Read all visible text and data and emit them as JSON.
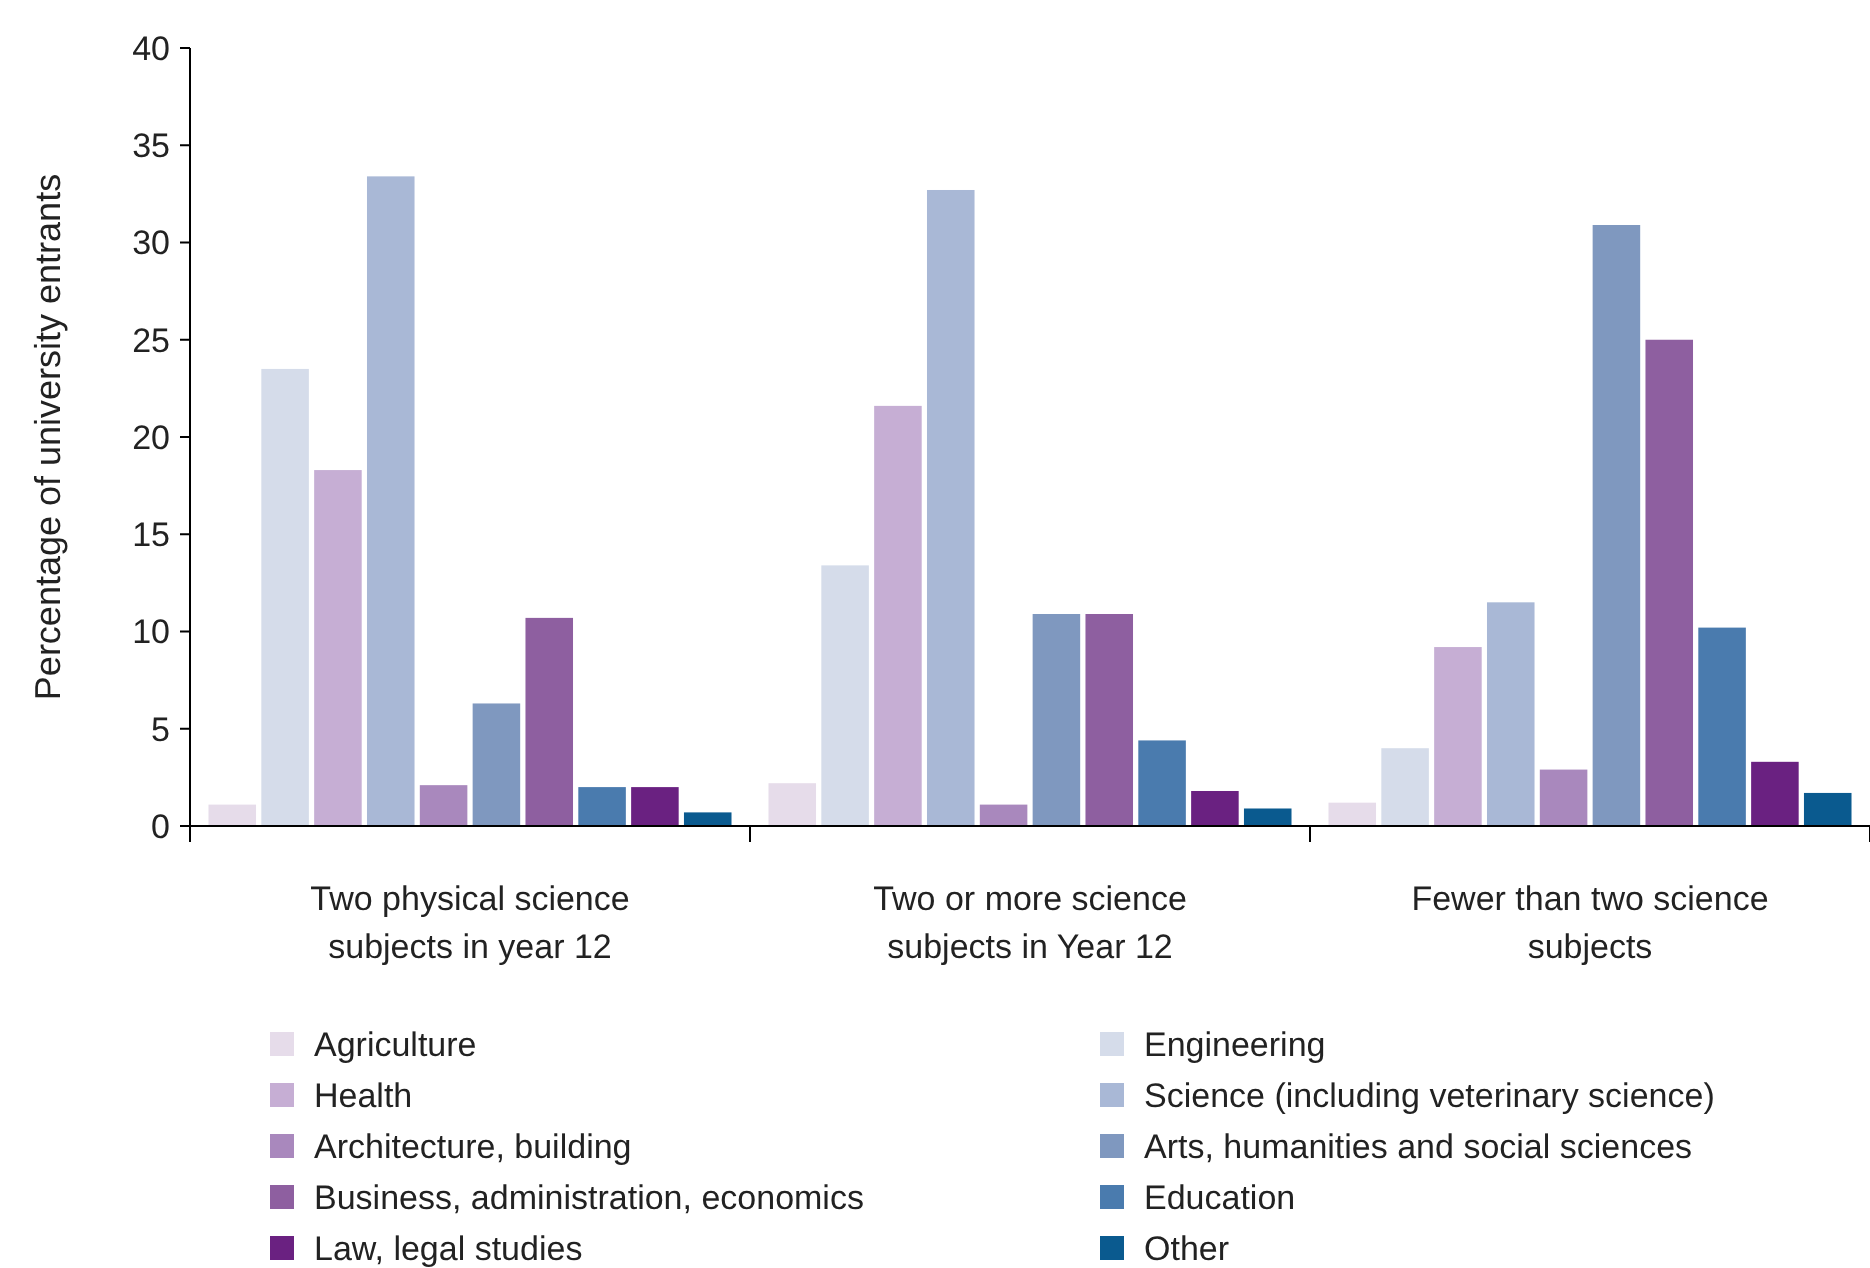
{
  "chart_data": {
    "type": "bar",
    "ylabel": "Percentage of university entrants",
    "categories": [
      "Two physical science subjects in year 12",
      "Two or more science subjects in Year 12",
      "Fewer than two science subjects"
    ],
    "ylim": [
      0,
      40
    ],
    "yticks": [
      0,
      5,
      10,
      15,
      20,
      25,
      30,
      35,
      40
    ],
    "grid": false,
    "legend": "bottom",
    "series": [
      {
        "name": "Agriculture",
        "color": "#e6dcea",
        "values": [
          1.1,
          2.2,
          1.2
        ]
      },
      {
        "name": "Engineering",
        "color": "#d5dcea",
        "values": [
          23.5,
          13.4,
          4.0
        ]
      },
      {
        "name": "Health",
        "color": "#c6aed4",
        "values": [
          18.3,
          21.6,
          9.2
        ]
      },
      {
        "name": "Science (including veterinary science)",
        "color": "#a9b8d6",
        "values": [
          33.4,
          32.7,
          11.5
        ]
      },
      {
        "name": "Architecture, building",
        "color": "#a988bd",
        "values": [
          2.1,
          1.1,
          2.9
        ]
      },
      {
        "name": "Arts, humanities and social sciences",
        "color": "#7f98bf",
        "values": [
          6.3,
          10.9,
          30.9
        ]
      },
      {
        "name": "Business, administration, economics",
        "color": "#8e5fa0",
        "values": [
          10.7,
          10.9,
          25.0
        ]
      },
      {
        "name": "Education",
        "color": "#4a7bae",
        "values": [
          2.0,
          4.4,
          10.2
        ]
      },
      {
        "name": "Law, legal studies",
        "color": "#6a2181",
        "values": [
          2.0,
          1.8,
          3.3
        ]
      },
      {
        "name": "Other",
        "color": "#0a5a8f",
        "values": [
          0.7,
          0.9,
          1.7
        ]
      }
    ]
  }
}
